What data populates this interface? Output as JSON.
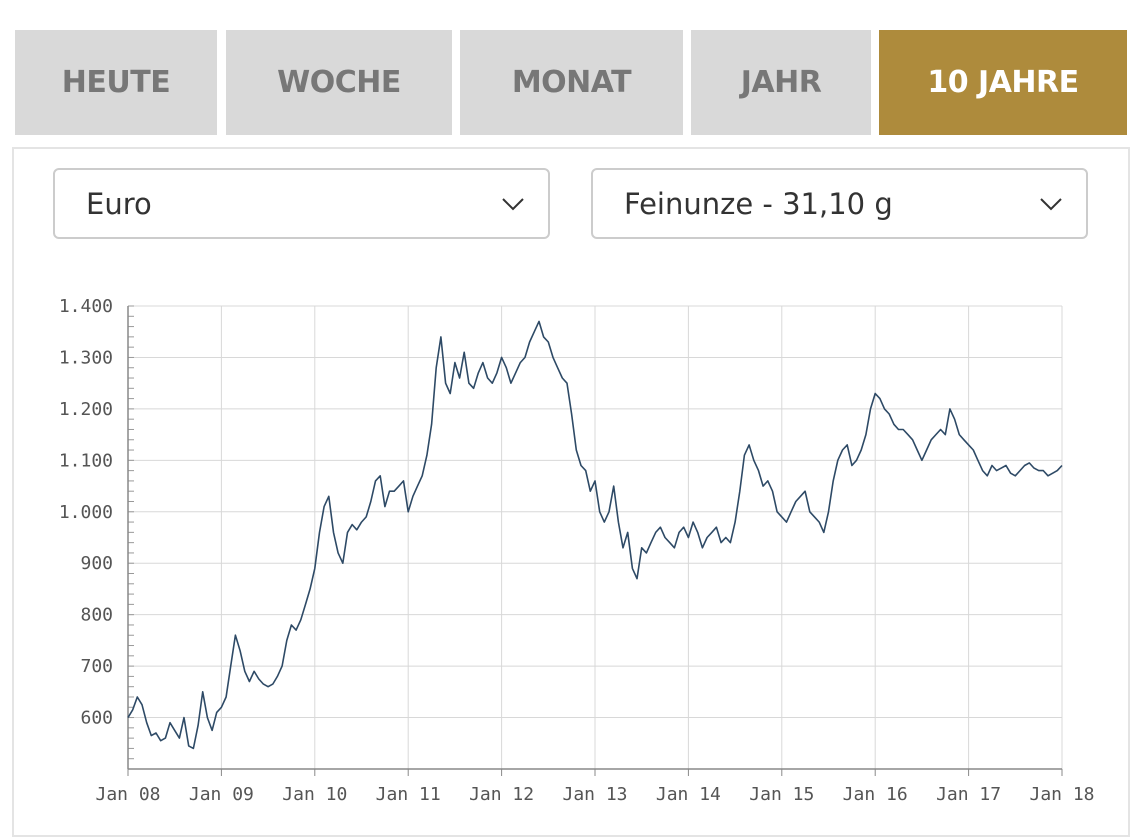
{
  "tabs": [
    {
      "label": "HEUTE",
      "active": false
    },
    {
      "label": "WOCHE",
      "active": false
    },
    {
      "label": "MONAT",
      "active": false
    },
    {
      "label": "JAHR",
      "active": false
    },
    {
      "label": "10 JAHRE",
      "active": true
    }
  ],
  "colors": {
    "tab_bg": "#d9d9d9",
    "tab_active_bg": "#ae8b3c",
    "line": "#2e4a66",
    "grid": "#d8d8d8"
  },
  "currency_select": {
    "value": "Euro",
    "icon": "chevron-down-icon"
  },
  "unit_select": {
    "value": "Feinunze - 31,10 g",
    "icon": "chevron-down-icon"
  },
  "chart_data": {
    "type": "line",
    "title": "",
    "xlabel": "",
    "ylabel": "",
    "grid": true,
    "xlim": [
      2008.0,
      2018.0
    ],
    "ylim": [
      500,
      1400
    ],
    "x_ticks": [
      {
        "value": 2008,
        "label": "Jan 08"
      },
      {
        "value": 2009,
        "label": "Jan 09"
      },
      {
        "value": 2010,
        "label": "Jan 10"
      },
      {
        "value": 2011,
        "label": "Jan 11"
      },
      {
        "value": 2012,
        "label": "Jan 12"
      },
      {
        "value": 2013,
        "label": "Jan 13"
      },
      {
        "value": 2014,
        "label": "Jan 14"
      },
      {
        "value": 2015,
        "label": "Jan 15"
      },
      {
        "value": 2016,
        "label": "Jan 16"
      },
      {
        "value": 2017,
        "label": "Jan 17"
      },
      {
        "value": 2018,
        "label": "Jan 18"
      }
    ],
    "y_ticks": [
      {
        "value": 600,
        "label": "600"
      },
      {
        "value": 700,
        "label": "700"
      },
      {
        "value": 800,
        "label": "800"
      },
      {
        "value": 900,
        "label": "900"
      },
      {
        "value": 1000,
        "label": "1.000"
      },
      {
        "value": 1100,
        "label": "1.100"
      },
      {
        "value": 1200,
        "label": "1.200"
      },
      {
        "value": 1300,
        "label": "1.300"
      },
      {
        "value": 1400,
        "label": "1.400"
      }
    ],
    "series": [
      {
        "x": [
          2008.0,
          2008.05,
          2008.1,
          2008.15,
          2008.2,
          2008.25,
          2008.3,
          2008.35,
          2008.4,
          2008.45,
          2008.5,
          2008.55,
          2008.6,
          2008.65,
          2008.7,
          2008.75,
          2008.8,
          2008.85,
          2008.9,
          2008.95,
          2009.0,
          2009.05,
          2009.1,
          2009.15,
          2009.2,
          2009.25,
          2009.3,
          2009.35,
          2009.4,
          2009.45,
          2009.5,
          2009.55,
          2009.6,
          2009.65,
          2009.7,
          2009.75,
          2009.8,
          2009.85,
          2009.9,
          2009.95,
          2010.0,
          2010.05,
          2010.1,
          2010.15,
          2010.2,
          2010.25,
          2010.3,
          2010.35,
          2010.4,
          2010.45,
          2010.5,
          2010.55,
          2010.6,
          2010.65,
          2010.7,
          2010.75,
          2010.8,
          2010.85,
          2010.9,
          2010.95,
          2011.0,
          2011.05,
          2011.1,
          2011.15,
          2011.2,
          2011.25,
          2011.3,
          2011.35,
          2011.4,
          2011.45,
          2011.5,
          2011.55,
          2011.6,
          2011.65,
          2011.7,
          2011.75,
          2011.8,
          2011.85,
          2011.9,
          2011.95,
          2012.0,
          2012.05,
          2012.1,
          2012.15,
          2012.2,
          2012.25,
          2012.3,
          2012.35,
          2012.4,
          2012.45,
          2012.5,
          2012.55,
          2012.6,
          2012.65,
          2012.7,
          2012.75,
          2012.8,
          2012.85,
          2012.9,
          2012.95,
          2013.0,
          2013.05,
          2013.1,
          2013.15,
          2013.2,
          2013.25,
          2013.3,
          2013.35,
          2013.4,
          2013.45,
          2013.5,
          2013.55,
          2013.6,
          2013.65,
          2013.7,
          2013.75,
          2013.8,
          2013.85,
          2013.9,
          2013.95,
          2014.0,
          2014.05,
          2014.1,
          2014.15,
          2014.2,
          2014.25,
          2014.3,
          2014.35,
          2014.4,
          2014.45,
          2014.5,
          2014.55,
          2014.6,
          2014.65,
          2014.7,
          2014.75,
          2014.8,
          2014.85,
          2014.9,
          2014.95,
          2015.0,
          2015.05,
          2015.1,
          2015.15,
          2015.2,
          2015.25,
          2015.3,
          2015.35,
          2015.4,
          2015.45,
          2015.5,
          2015.55,
          2015.6,
          2015.65,
          2015.7,
          2015.75,
          2015.8,
          2015.85,
          2015.9,
          2015.95,
          2016.0,
          2016.05,
          2016.1,
          2016.15,
          2016.2,
          2016.25,
          2016.3,
          2016.35,
          2016.4,
          2016.45,
          2016.5,
          2016.55,
          2016.6,
          2016.65,
          2016.7,
          2016.75,
          2016.8,
          2016.85,
          2016.9,
          2016.95,
          2017.0,
          2017.05,
          2017.1,
          2017.15,
          2017.2,
          2017.25,
          2017.3,
          2017.35,
          2017.4,
          2017.45,
          2017.5,
          2017.55,
          2017.6,
          2017.65,
          2017.7,
          2017.75,
          2017.8,
          2017.85,
          2017.9,
          2017.95,
          2018.0
        ],
        "values": [
          600,
          615,
          640,
          625,
          590,
          565,
          570,
          555,
          560,
          590,
          575,
          560,
          600,
          545,
          540,
          585,
          650,
          600,
          575,
          610,
          620,
          640,
          700,
          760,
          730,
          690,
          670,
          690,
          675,
          665,
          660,
          665,
          680,
          700,
          750,
          780,
          770,
          790,
          820,
          850,
          890,
          960,
          1010,
          1030,
          960,
          920,
          900,
          960,
          975,
          965,
          980,
          990,
          1020,
          1060,
          1070,
          1010,
          1040,
          1040,
          1050,
          1060,
          1000,
          1030,
          1050,
          1070,
          1110,
          1170,
          1280,
          1340,
          1250,
          1230,
          1290,
          1260,
          1310,
          1250,
          1240,
          1270,
          1290,
          1260,
          1250,
          1270,
          1300,
          1280,
          1250,
          1270,
          1290,
          1300,
          1330,
          1350,
          1370,
          1340,
          1330,
          1300,
          1280,
          1260,
          1250,
          1190,
          1120,
          1090,
          1080,
          1040,
          1060,
          1000,
          980,
          1000,
          1050,
          980,
          930,
          960,
          890,
          870,
          930,
          920,
          940,
          960,
          970,
          950,
          940,
          930,
          960,
          970,
          950,
          980,
          960,
          930,
          950,
          960,
          970,
          940,
          950,
          940,
          980,
          1040,
          1110,
          1130,
          1100,
          1080,
          1050,
          1060,
          1040,
          1000,
          990,
          980,
          1000,
          1020,
          1030,
          1040,
          1000,
          990,
          980,
          960,
          1000,
          1060,
          1100,
          1120,
          1130,
          1090,
          1100,
          1120,
          1150,
          1200,
          1230,
          1220,
          1200,
          1190,
          1170,
          1160,
          1160,
          1150,
          1140,
          1120,
          1100,
          1120,
          1140,
          1150,
          1160,
          1150,
          1200,
          1180,
          1150,
          1140,
          1130,
          1120,
          1100,
          1080,
          1070,
          1090,
          1080,
          1085,
          1090,
          1075,
          1070,
          1080,
          1090,
          1095,
          1085,
          1080,
          1080,
          1070,
          1075,
          1080,
          1090
        ],
        "color": "#2e4a66"
      }
    ]
  }
}
